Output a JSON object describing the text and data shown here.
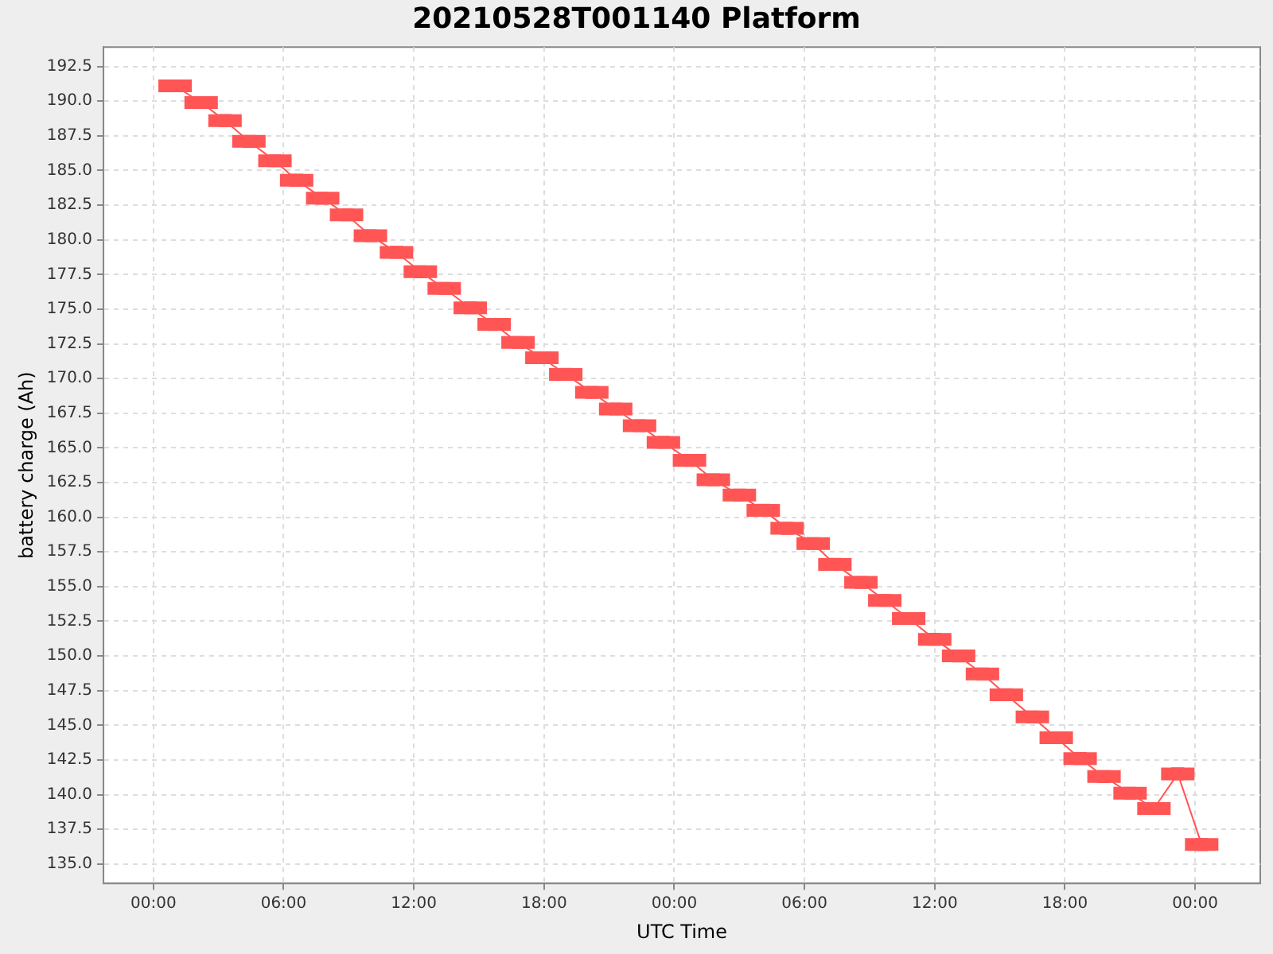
{
  "chart_data": {
    "type": "line",
    "title": "20210528T001140 Platform",
    "xlabel": "UTC Time",
    "ylabel": "battery charge (Ah)",
    "x": [
      "2021-05-28T01:00",
      "2021-05-28T02:12",
      "2021-05-28T03:18",
      "2021-05-28T04:24",
      "2021-05-28T05:36",
      "2021-05-28T06:36",
      "2021-05-28T07:48",
      "2021-05-28T08:54",
      "2021-05-28T10:00",
      "2021-05-28T11:12",
      "2021-05-28T12:18",
      "2021-05-28T13:24",
      "2021-05-28T14:36",
      "2021-05-28T15:42",
      "2021-05-28T16:48",
      "2021-05-28T17:54",
      "2021-05-28T19:00",
      "2021-05-28T20:12",
      "2021-05-28T21:18",
      "2021-05-28T22:24",
      "2021-05-28T23:30",
      "2021-05-29T00:42",
      "2021-05-29T01:48",
      "2021-05-29T03:00",
      "2021-05-29T04:06",
      "2021-05-29T05:12",
      "2021-05-29T06:24",
      "2021-05-29T07:24",
      "2021-05-29T08:36",
      "2021-05-29T09:42",
      "2021-05-29T10:48",
      "2021-05-29T12:00",
      "2021-05-29T13:06",
      "2021-05-29T14:12",
      "2021-05-29T15:18",
      "2021-05-29T16:30",
      "2021-05-29T17:36",
      "2021-05-29T18:42",
      "2021-05-29T19:48",
      "2021-05-29T21:00",
      "2021-05-29T22:06",
      "2021-05-29T23:12",
      "2021-05-30T00:18"
    ],
    "series": [
      {
        "color": "#ff5555",
        "values": [
          191.1,
          189.9,
          188.6,
          187.1,
          185.7,
          184.3,
          183.0,
          181.8,
          180.3,
          179.1,
          177.7,
          176.5,
          175.1,
          173.9,
          172.6,
          171.5,
          170.3,
          169.0,
          167.8,
          166.6,
          165.4,
          164.1,
          162.7,
          161.6,
          160.5,
          159.2,
          158.1,
          156.6,
          155.3,
          154.0,
          152.7,
          151.2,
          150.0,
          148.7,
          147.2,
          145.6,
          144.1,
          142.6,
          141.3,
          140.1,
          139.0,
          141.5,
          136.4
        ]
      }
    ],
    "xlim": [
      "2021-05-27T21:42",
      "2021-05-30T03:00"
    ],
    "xticks": [
      {
        "value": "2021-05-28T00:00",
        "label": "00:00"
      },
      {
        "value": "2021-05-28T06:00",
        "label": "06:00"
      },
      {
        "value": "2021-05-28T12:00",
        "label": "12:00"
      },
      {
        "value": "2021-05-28T18:00",
        "label": "18:00"
      },
      {
        "value": "2021-05-29T00:00",
        "label": "00:00"
      },
      {
        "value": "2021-05-29T06:00",
        "label": "06:00"
      },
      {
        "value": "2021-05-29T12:00",
        "label": "12:00"
      },
      {
        "value": "2021-05-29T18:00",
        "label": "18:00"
      },
      {
        "value": "2021-05-30T00:00",
        "label": "00:00"
      }
    ],
    "ylim": [
      133.6,
      193.9
    ],
    "yticks": [
      {
        "value": 135,
        "label": "135.0"
      },
      137.5,
      {
        "value": 140,
        "label": "140.0"
      },
      142.5,
      {
        "value": 145,
        "label": "145.0"
      },
      147.5,
      {
        "value": 150,
        "label": "150.0"
      },
      152.5,
      {
        "value": 155,
        "label": "155.0"
      },
      157.5,
      {
        "value": 160,
        "label": "160.0"
      },
      162.5,
      {
        "value": 165,
        "label": "165.0"
      },
      167.5,
      {
        "value": 170,
        "label": "170.0"
      },
      172.5,
      {
        "value": 175,
        "label": "175.0"
      },
      177.5,
      {
        "value": 180,
        "label": "180.0"
      },
      182.5,
      {
        "value": 185,
        "label": "185.0"
      },
      187.5,
      {
        "value": 190,
        "label": "190.0"
      },
      192.5
    ],
    "grid": true,
    "legend": false,
    "marker": "square"
  }
}
